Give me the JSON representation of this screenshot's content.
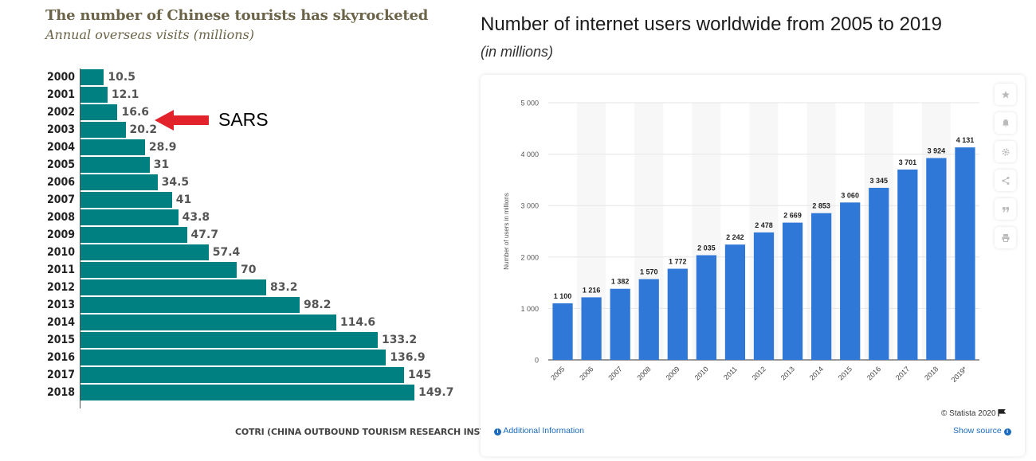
{
  "left_chart": {
    "title": "The number of Chinese tourists has skyrocketed",
    "subtitle": "Annual overseas visits (millions)",
    "source": "COTRI (CHINA OUTBOUND TOURISM RESEARCH INSTITUTE)",
    "annotation": "SARS",
    "colors": {
      "bar": "#008080",
      "title": "#6b6448",
      "arrow": "#e3232c"
    }
  },
  "right_chart": {
    "title": "Number of internet users worldwide from 2005 to 2019",
    "subtitle": "(in millions)",
    "copyright": "© Statista 2020",
    "additional_info": "Additional Information",
    "show_source": "Show source",
    "icons": [
      "star-icon",
      "bell-icon",
      "gear-icon",
      "share-icon",
      "quote-icon",
      "print-icon"
    ],
    "colors": {
      "bar": "#2f78d8",
      "band": "#f7f7f7",
      "link": "#1a6bbd"
    }
  },
  "chart_data": [
    {
      "type": "bar",
      "orientation": "horizontal",
      "title": "The number of Chinese tourists has skyrocketed",
      "subtitle": "Annual overseas visits (millions)",
      "categories": [
        "2000",
        "2001",
        "2002",
        "2003",
        "2004",
        "2005",
        "2006",
        "2007",
        "2008",
        "2009",
        "2010",
        "2011",
        "2012",
        "2013",
        "2014",
        "2015",
        "2016",
        "2017",
        "2018"
      ],
      "values": [
        10.5,
        12.1,
        16.6,
        20.2,
        28.9,
        31,
        34.5,
        41,
        43.8,
        47.7,
        57.4,
        70,
        83.2,
        98.2,
        114.6,
        133.2,
        136.9,
        145,
        149.7
      ],
      "value_labels": [
        "10.5",
        "12.1",
        "16.6",
        "20.2",
        "28.9",
        "31",
        "34.5",
        "41",
        "43.8",
        "47.7",
        "57.4",
        "70",
        "83.2",
        "98.2",
        "114.6",
        "133.2",
        "136.9",
        "145",
        "149.7"
      ],
      "annotations": [
        {
          "category": "2002",
          "text": "SARS"
        }
      ],
      "source": "COTRI (CHINA OUTBOUND TOURISM RESEARCH INSTITUTE)"
    },
    {
      "type": "bar",
      "title": "Number of internet users worldwide from 2005 to 2019",
      "subtitle": "(in millions)",
      "ylabel": "Number of users in millions",
      "categories": [
        "2005",
        "2006",
        "2007",
        "2008",
        "2009",
        "2010",
        "2011",
        "2012",
        "2013",
        "2014",
        "2015",
        "2016",
        "2017",
        "2018",
        "2019*"
      ],
      "values": [
        1100,
        1216,
        1382,
        1570,
        1772,
        2035,
        2242,
        2478,
        2669,
        2853,
        3060,
        3345,
        3701,
        3924,
        4131
      ],
      "value_labels": [
        "1 100",
        "1 216",
        "1 382",
        "1 570",
        "1 772",
        "2 035",
        "2 242",
        "2 478",
        "2 669",
        "2 853",
        "3 060",
        "3 345",
        "3 701",
        "3 924",
        "4 131"
      ],
      "ylim": [
        0,
        5000
      ],
      "yticks": [
        0,
        1000,
        2000,
        3000,
        4000,
        5000
      ],
      "ytick_labels": [
        "0",
        "1 000",
        "2 000",
        "3 000",
        "4 000",
        "5 000"
      ],
      "grid": true
    }
  ]
}
